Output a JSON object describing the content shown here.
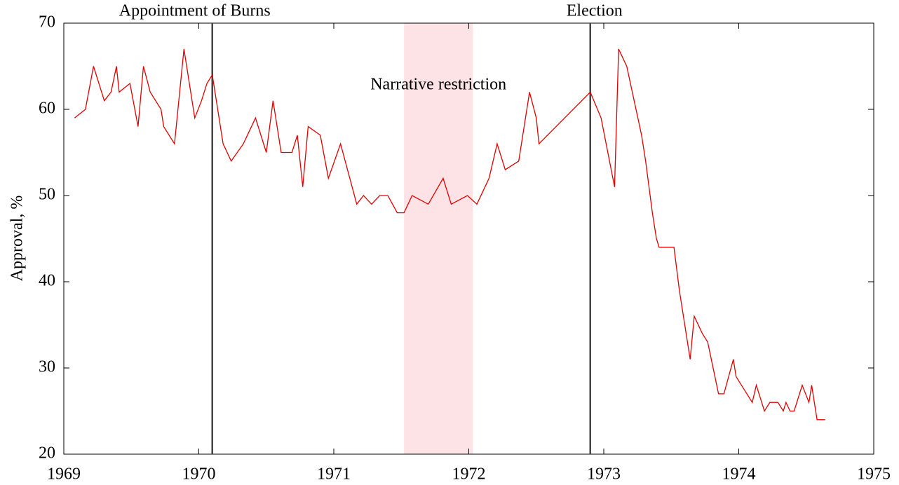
{
  "chart_data": {
    "type": "line",
    "y_label": "Approval, %",
    "x": [
      1969.08,
      1969.16,
      1969.22,
      1969.3,
      1969.35,
      1969.39,
      1969.41,
      1969.49,
      1969.55,
      1969.59,
      1969.64,
      1969.72,
      1969.74,
      1969.82,
      1969.89,
      1969.97,
      1970.02,
      1970.06,
      1970.1,
      1970.18,
      1970.24,
      1970.33,
      1970.42,
      1970.5,
      1970.55,
      1970.61,
      1970.69,
      1970.73,
      1970.77,
      1970.81,
      1970.9,
      1970.96,
      1971.05,
      1971.17,
      1971.22,
      1971.28,
      1971.34,
      1971.4,
      1971.47,
      1971.52,
      1971.58,
      1971.7,
      1971.81,
      1971.87,
      1971.99,
      1972.06,
      1972.15,
      1972.21,
      1972.27,
      1972.37,
      1972.45,
      1972.5,
      1972.52,
      1972.9,
      1972.98,
      1973.08,
      1973.11,
      1973.17,
      1973.28,
      1973.31,
      1973.36,
      1973.39,
      1973.41,
      1973.52,
      1973.56,
      1973.64,
      1973.67,
      1973.73,
      1973.77,
      1973.85,
      1973.89,
      1973.96,
      1973.98,
      1974.1,
      1974.13,
      1974.19,
      1974.23,
      1974.29,
      1974.33,
      1974.35,
      1974.38,
      1974.41,
      1974.47,
      1974.52,
      1974.54,
      1974.58,
      1974.64
    ],
    "values": [
      59,
      60,
      65,
      61,
      62,
      65,
      62,
      63,
      58,
      65,
      62,
      60,
      58,
      56,
      67,
      59,
      61,
      63,
      64,
      56,
      54,
      56,
      59,
      55,
      61,
      55,
      55,
      57,
      51,
      58,
      57,
      52,
      56,
      49,
      50,
      49,
      50,
      50,
      48,
      48,
      50,
      49,
      52,
      49,
      50,
      49,
      52,
      56,
      53,
      54,
      62,
      59,
      56,
      62,
      59,
      51,
      67,
      65,
      57,
      54,
      48,
      45,
      44,
      44,
      39,
      31,
      36,
      34,
      33,
      27,
      27,
      31,
      29,
      26,
      28,
      25,
      26,
      26,
      25,
      26,
      25,
      25,
      28,
      26,
      28,
      24,
      24
    ],
    "color": "#e00000",
    "xlim": [
      1969,
      1975
    ],
    "xticks": [
      1969,
      1970,
      1971,
      1972,
      1973,
      1974,
      1975
    ],
    "ylim": [
      20,
      70
    ],
    "yticks": [
      20,
      30,
      40,
      50,
      60,
      70
    ],
    "vlines": [
      {
        "label": "Appointment of Burns",
        "x": 1970.1
      },
      {
        "label": "Election",
        "x": 1972.9
      }
    ],
    "vline_color": "#444444",
    "shaded": {
      "label": "Narrative restriction",
      "range": [
        1971.52,
        1972.03
      ],
      "color": "#fde3e6"
    }
  }
}
